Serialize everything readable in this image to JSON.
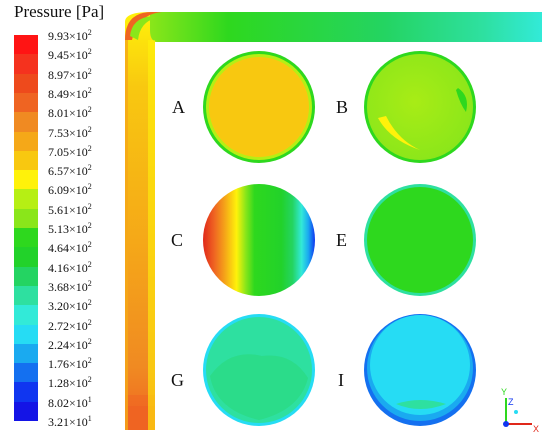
{
  "legend": {
    "title": "Pressure [Pa]",
    "entries": [
      {
        "mantissa": "9.93×10",
        "exp": "2",
        "color": "#ff1414"
      },
      {
        "mantissa": "9.45×10",
        "exp": "2",
        "color": "#f5321e"
      },
      {
        "mantissa": "8.97×10",
        "exp": "2",
        "color": "#ee4a1c"
      },
      {
        "mantissa": "8.49×10",
        "exp": "2",
        "color": "#ef6422"
      },
      {
        "mantissa": "8.01×10",
        "exp": "2",
        "color": "#f08a22"
      },
      {
        "mantissa": "7.53×10",
        "exp": "2",
        "color": "#f5a818"
      },
      {
        "mantissa": "7.05×10",
        "exp": "2",
        "color": "#f8c810"
      },
      {
        "mantissa": "6.57×10",
        "exp": "2",
        "color": "#fff20a"
      },
      {
        "mantissa": "6.09×10",
        "exp": "2",
        "color": "#b6ef14"
      },
      {
        "mantissa": "5.61×10",
        "exp": "2",
        "color": "#8ae61a"
      },
      {
        "mantissa": "5.13×10",
        "exp": "2",
        "color": "#2ed81e"
      },
      {
        "mantissa": "4.64×10",
        "exp": "2",
        "color": "#22d22a"
      },
      {
        "mantissa": "4.16×10",
        "exp": "2",
        "color": "#24d462"
      },
      {
        "mantissa": "3.68×10",
        "exp": "2",
        "color": "#2ee0a0"
      },
      {
        "mantissa": "3.20×10",
        "exp": "2",
        "color": "#32ead8"
      },
      {
        "mantissa": "2.72×10",
        "exp": "2",
        "color": "#26dcf4"
      },
      {
        "mantissa": "2.24×10",
        "exp": "2",
        "color": "#1aaaf0"
      },
      {
        "mantissa": "1.76×10",
        "exp": "2",
        "color": "#1470f0"
      },
      {
        "mantissa": "1.28×10",
        "exp": "2",
        "color": "#1036f0"
      },
      {
        "mantissa": "8.02×10",
        "exp": "1",
        "color": "#1414e6"
      },
      {
        "mantissa": "3.21×10",
        "exp": "1",
        "color": "#1414e6"
      }
    ]
  },
  "panels": [
    {
      "label": "A"
    },
    {
      "label": "B"
    },
    {
      "label": "C"
    },
    {
      "label": "E"
    },
    {
      "label": "G"
    },
    {
      "label": "I"
    }
  ],
  "axes_triad": {
    "y_label": "Y",
    "z_label": "Z",
    "x_label": "X"
  }
}
